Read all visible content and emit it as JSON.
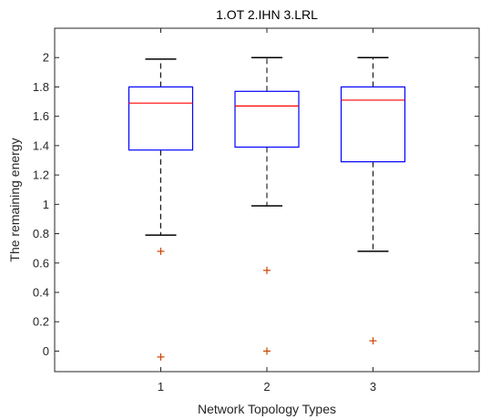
{
  "chart_data": {
    "type": "box",
    "title": "1.OT 2.IHN 3.LRL",
    "xlabel": "Network Topology Types",
    "ylabel": "The remaining energy",
    "categories": [
      "1",
      "2",
      "3"
    ],
    "ylim": [
      -0.14,
      2.2
    ],
    "yticks": [
      "0",
      "0.2",
      "0.4",
      "0.6",
      "0.8",
      "1",
      "1.2",
      "1.4",
      "1.6",
      "1.8",
      "2"
    ],
    "grid": false,
    "boxes": [
      {
        "category": "1",
        "whisker_low": 0.79,
        "q1": 1.37,
        "median": 1.69,
        "q3": 1.8,
        "whisker_high": 1.99,
        "outliers": [
          0.68,
          -0.04
        ]
      },
      {
        "category": "2",
        "whisker_low": 0.99,
        "q1": 1.39,
        "median": 1.67,
        "q3": 1.77,
        "whisker_high": 2.0,
        "outliers": [
          0.55,
          0.0
        ]
      },
      {
        "category": "3",
        "whisker_low": 0.68,
        "q1": 1.29,
        "median": 1.71,
        "q3": 1.8,
        "whisker_high": 2.0,
        "outliers": [
          0.07
        ]
      }
    ],
    "colors": {
      "box": "#0000ff",
      "median": "#ff0000",
      "whisker": "#000000",
      "outlier": "#cc4400",
      "axis": "#262626"
    }
  }
}
